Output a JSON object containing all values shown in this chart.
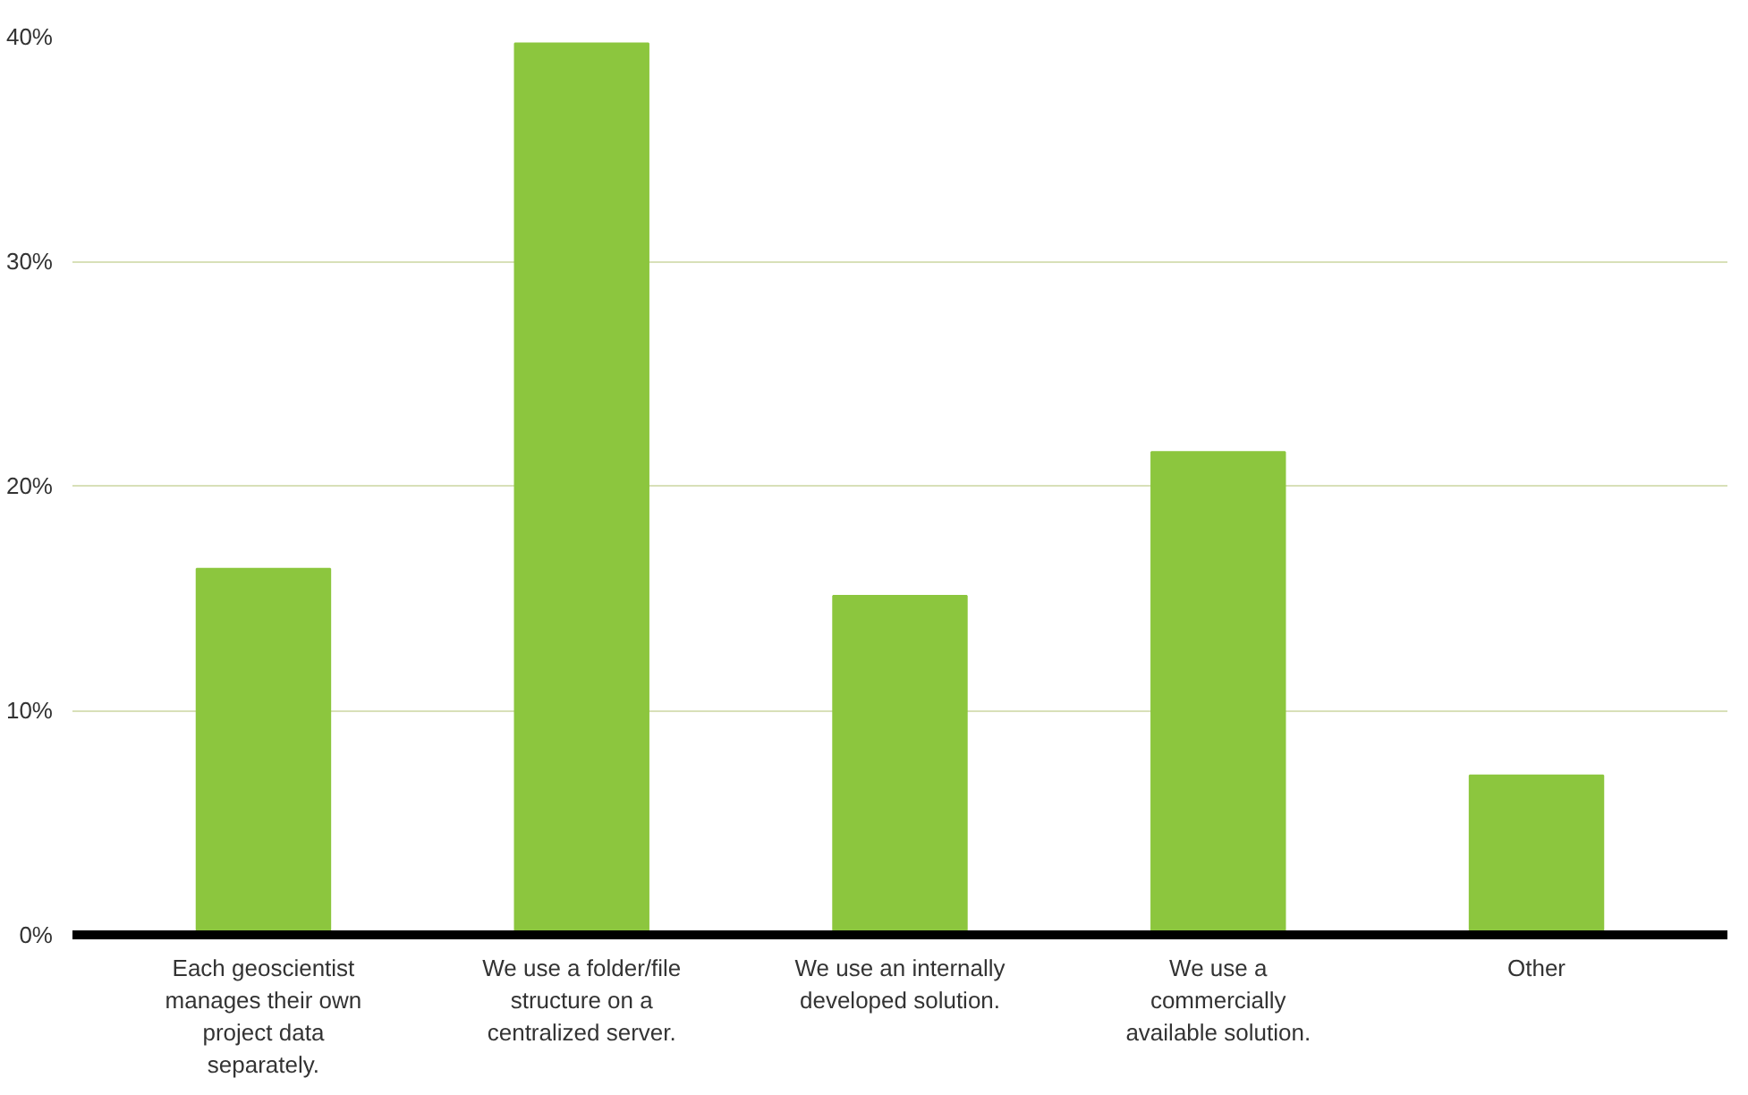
{
  "chart_data": {
    "type": "bar",
    "categories": [
      "Each geoscientist manages their own project data separately.",
      "We use a folder/file structure on a centralized server.",
      "We use an internally developed solution.",
      "We use a commercially available solution.",
      "Other"
    ],
    "values": [
      16.3,
      39.7,
      15.1,
      21.5,
      7.1
    ],
    "color": "#8cc63e",
    "ylim": [
      0,
      40
    ],
    "yticks": [
      {
        "value": 0,
        "label": "0%"
      },
      {
        "value": 10,
        "label": "10%"
      },
      {
        "value": 20,
        "label": "20%"
      },
      {
        "value": 30,
        "label": "30%"
      },
      {
        "value": 40,
        "label": "40%"
      }
    ],
    "grid": "y"
  }
}
